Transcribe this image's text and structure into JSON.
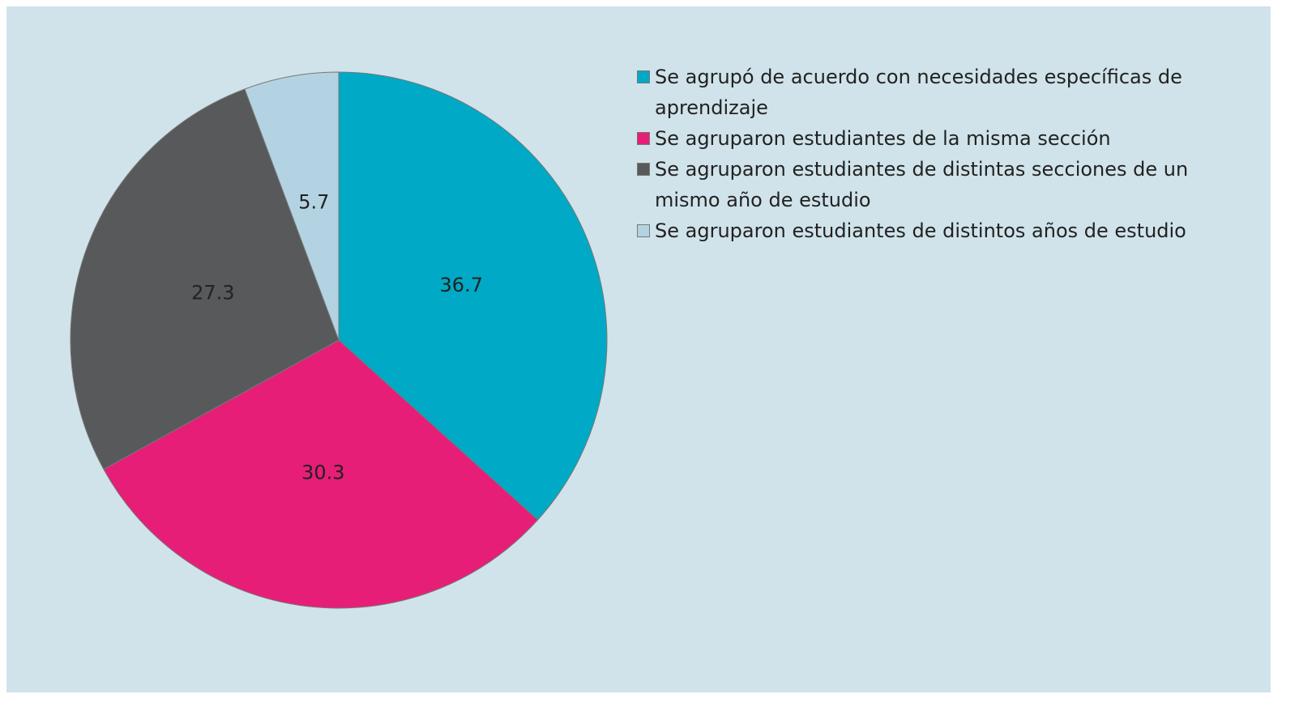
{
  "chart_data": {
    "type": "pie",
    "categories": [
      "Se agrupó de acuerdo con necesidades específicas de aprendizaje",
      "Se agruparon estudiantes de la misma sección",
      "Se agruparon estudiantes de distintas secciones de un mismo año de estudio",
      "Se agruparon estudiantes de distintos años de estudio"
    ],
    "values": [
      36.7,
      30.3,
      27.3,
      5.7
    ],
    "colors": [
      "#00a9c5",
      "#e61e78",
      "#58595b",
      "#b3d3e3"
    ],
    "legend": "right"
  }
}
